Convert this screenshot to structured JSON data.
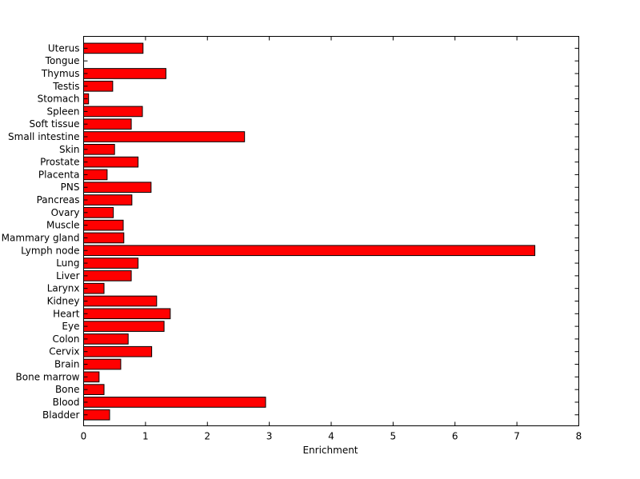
{
  "chart_data": {
    "type": "bar",
    "orientation": "horizontal",
    "title": "",
    "xlabel": "Enrichment",
    "ylabel": "",
    "xlim": [
      0,
      8
    ],
    "xticks": [
      "0",
      "1",
      "2",
      "3",
      "4",
      "5",
      "6",
      "7",
      "8"
    ],
    "grid": false,
    "legend": "none",
    "bar_color": "#ff0000",
    "bar_edge_color": "#000000",
    "categories": [
      "Uterus",
      "Tongue",
      "Thymus",
      "Testis",
      "Stomach",
      "Spleen",
      "Soft tissue",
      "Small intestine",
      "Skin",
      "Prostate",
      "Placenta",
      "PNS",
      "Pancreas",
      "Ovary",
      "Muscle",
      "Mammary gland",
      "Lymph node",
      "Lung",
      "Liver",
      "Larynx",
      "Kidney",
      "Heart",
      "Eye",
      "Colon",
      "Cervix",
      "Brain",
      "Bone marrow",
      "Bone",
      "Blood",
      "Bladder"
    ],
    "values": [
      0.96,
      0.0,
      1.33,
      0.47,
      0.08,
      0.95,
      0.77,
      2.6,
      0.5,
      0.88,
      0.38,
      1.09,
      0.78,
      0.48,
      0.64,
      0.65,
      7.29,
      0.88,
      0.77,
      0.33,
      1.18,
      1.4,
      1.3,
      0.72,
      1.1,
      0.6,
      0.25,
      0.33,
      2.94,
      0.42
    ]
  }
}
